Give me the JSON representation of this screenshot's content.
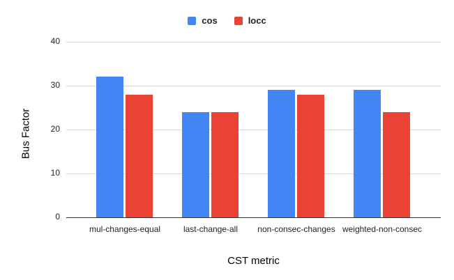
{
  "chart_data": {
    "type": "bar",
    "title": "",
    "xlabel": "CST metric",
    "ylabel": "Bus Factor",
    "categories": [
      "mul-changes-equal",
      "last-change-all",
      "non-consec-changes",
      "weighted-non-consec"
    ],
    "series": [
      {
        "name": "cos",
        "color": "#4285F4",
        "values": [
          32,
          24,
          29,
          29
        ]
      },
      {
        "name": "locc",
        "color": "#EA4335",
        "values": [
          28,
          24,
          28,
          24
        ]
      }
    ],
    "ylim": [
      0,
      40
    ],
    "yticks": [
      0,
      10,
      20,
      30,
      40
    ],
    "grid": true,
    "legend_position": "top",
    "background_color": "#ffffff",
    "gridline_color": "#d9d9d9",
    "baseline_color": "#333333",
    "text_color": "#1f1f1f"
  }
}
